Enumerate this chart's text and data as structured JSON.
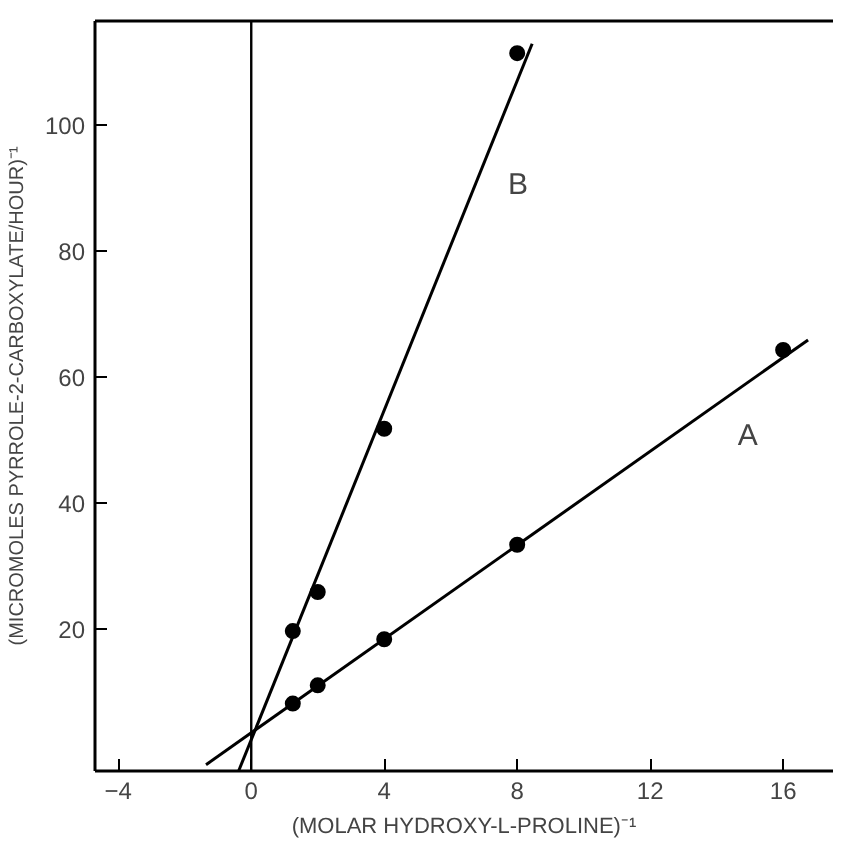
{
  "chart_data": {
    "type": "scatter",
    "xlabel": "(MOLAR HYDROXY-L-PROLINE)⁻¹",
    "ylabel": "(MICROMOLES PYRROLE-2-CARBOXYLATE/HOUR)⁻¹",
    "xlim": [
      -4.7,
      17.5
    ],
    "ylim": [
      -2.5,
      116.5
    ],
    "xticks": [
      -4,
      0,
      4,
      8,
      12,
      16
    ],
    "yticks": [
      20,
      40,
      60,
      80,
      100
    ],
    "grid": false,
    "series": [
      {
        "color": "#000000",
        "marker": "circle",
        "x": [
          1.25,
          2,
          4,
          8,
          16
        ],
        "values": [
          8.2,
          11.1,
          18.4,
          33.4,
          64.3
        ]
      },
      {
        "color": "#000000",
        "marker": "circle",
        "x": [
          1.25,
          2,
          4,
          8
        ],
        "values": [
          19.7,
          25.9,
          51.8,
          111.4
        ]
      },
      {
        "type": "line",
        "name": "A",
        "color": "#000000",
        "marker": "none",
        "line_style": "solid",
        "x": [
          -1.36,
          16.75
        ],
        "values": [
          -1.5,
          65.9
        ]
      },
      {
        "type": "line",
        "name": "B",
        "color": "#000000",
        "marker": "none",
        "line_style": "solid",
        "x": [
          -0.38,
          8.45
        ],
        "values": [
          -2.5,
          112.9
        ]
      }
    ],
    "ref_lines": [
      {
        "axis": "x",
        "value": 0,
        "color": "#000000",
        "line_style": "solid"
      }
    ]
  }
}
